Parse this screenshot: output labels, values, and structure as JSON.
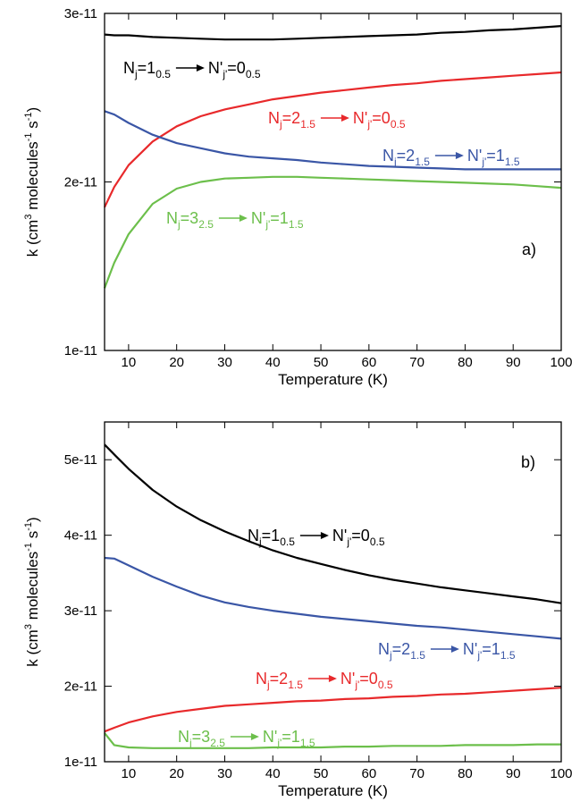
{
  "chart_data": [
    {
      "type": "line",
      "panel_label": "a)",
      "xlabel": "Temperature (K)",
      "ylabel": "k (cm3 molecules-1 s-1)",
      "ylabel_parts": {
        "pre": "k (cm",
        "sup1": "3",
        "mid": " molecules",
        "sup2": "-1",
        "mid2": " s",
        "sup3": "-1",
        "post": ")"
      },
      "xlim": [
        5,
        100
      ],
      "ylim": [
        1e-11,
        3e-11
      ],
      "x_ticks": [
        10,
        20,
        30,
        40,
        50,
        60,
        70,
        80,
        90,
        100
      ],
      "y_ticks": [
        1e-11,
        2e-11,
        3e-11
      ],
      "y_tick_labels": [
        "1e-11",
        "2e-11",
        "3e-11"
      ],
      "grid": false,
      "series": [
        {
          "color": "#000000",
          "label": {
            "n_l": "N",
            "j_l": "j",
            "eq_l": "=1",
            "s_l": "0.5",
            "n_r": "N'",
            "j_r": "j'",
            "eq_r": "=0",
            "s_r": "0.5"
          },
          "x": [
            5,
            7,
            10,
            15,
            20,
            25,
            30,
            35,
            40,
            45,
            50,
            55,
            60,
            65,
            70,
            75,
            80,
            85,
            90,
            95,
            100
          ],
          "y": [
            2.875e-11,
            2.87e-11,
            2.87e-11,
            2.86e-11,
            2.855e-11,
            2.85e-11,
            2.845e-11,
            2.845e-11,
            2.845e-11,
            2.85e-11,
            2.855e-11,
            2.86e-11,
            2.865e-11,
            2.87e-11,
            2.875e-11,
            2.885e-11,
            2.89e-11,
            2.9e-11,
            2.905e-11,
            2.915e-11,
            2.925e-11
          ]
        },
        {
          "color": "#e8292b",
          "label": {
            "n_l": "N",
            "j_l": "j",
            "eq_l": "=2",
            "s_l": "1.5",
            "n_r": "N'",
            "j_r": "j'",
            "eq_r": "=0",
            "s_r": "0.5"
          },
          "x": [
            5,
            7,
            10,
            15,
            20,
            25,
            30,
            35,
            40,
            45,
            50,
            55,
            60,
            65,
            70,
            75,
            80,
            85,
            90,
            95,
            100
          ],
          "y": [
            1.85e-11,
            1.97e-11,
            2.1e-11,
            2.24e-11,
            2.33e-11,
            2.39e-11,
            2.43e-11,
            2.46e-11,
            2.49e-11,
            2.51e-11,
            2.53e-11,
            2.545e-11,
            2.56e-11,
            2.575e-11,
            2.585e-11,
            2.6e-11,
            2.61e-11,
            2.62e-11,
            2.63e-11,
            2.64e-11,
            2.65e-11
          ]
        },
        {
          "color": "#3a56a6",
          "label": {
            "n_l": "N",
            "j_l": "j",
            "eq_l": "=2",
            "s_l": "1.5",
            "n_r": "N'",
            "j_r": "j'",
            "eq_r": "=1",
            "s_r": "1.5"
          },
          "x": [
            5,
            7,
            10,
            15,
            20,
            25,
            30,
            35,
            40,
            45,
            50,
            55,
            60,
            65,
            70,
            75,
            80,
            85,
            90,
            95,
            100
          ],
          "y": [
            2.42e-11,
            2.4e-11,
            2.35e-11,
            2.28e-11,
            2.23e-11,
            2.2e-11,
            2.17e-11,
            2.15e-11,
            2.14e-11,
            2.13e-11,
            2.115e-11,
            2.105e-11,
            2.095e-11,
            2.09e-11,
            2.085e-11,
            2.08e-11,
            2.075e-11,
            2.075e-11,
            2.075e-11,
            2.075e-11,
            2.075e-11
          ]
        },
        {
          "color": "#6cbf4b",
          "label": {
            "n_l": "N",
            "j_l": "j",
            "eq_l": "=3",
            "s_l": "2.5",
            "n_r": "N'",
            "j_r": "j'",
            "eq_r": "=1",
            "s_r": "1.5"
          },
          "x": [
            5,
            7,
            10,
            15,
            20,
            25,
            30,
            35,
            40,
            45,
            50,
            55,
            60,
            65,
            70,
            75,
            80,
            85,
            90,
            95,
            100
          ],
          "y": [
            1.37e-11,
            1.52e-11,
            1.69e-11,
            1.87e-11,
            1.96e-11,
            2e-11,
            2.02e-11,
            2.025e-11,
            2.03e-11,
            2.03e-11,
            2.025e-11,
            2.02e-11,
            2.015e-11,
            2.01e-11,
            2.005e-11,
            2e-11,
            1.995e-11,
            1.99e-11,
            1.985e-11,
            1.975e-11,
            1.965e-11
          ]
        }
      ]
    },
    {
      "type": "line",
      "panel_label": "b)",
      "xlabel": "Temperature (K)",
      "ylabel": "k (cm3 molecules-1 s-1)",
      "ylabel_parts": {
        "pre": "k (cm",
        "sup1": "3",
        "mid": " molecules",
        "sup2": "-1",
        "mid2": " s",
        "sup3": "-1",
        "post": ")"
      },
      "xlim": [
        5,
        100
      ],
      "ylim": [
        1e-11,
        5.5e-11
      ],
      "x_ticks": [
        10,
        20,
        30,
        40,
        50,
        60,
        70,
        80,
        90,
        100
      ],
      "y_ticks": [
        1e-11,
        2e-11,
        3e-11,
        4e-11,
        5e-11
      ],
      "y_tick_labels": [
        "1e-11",
        "2e-11",
        "3e-11",
        "4e-11",
        "5e-11"
      ],
      "grid": false,
      "series": [
        {
          "color": "#000000",
          "label": {
            "n_l": "N",
            "j_l": "j",
            "eq_l": "=1",
            "s_l": "0.5",
            "n_r": "N'",
            "j_r": "j'",
            "eq_r": "=0",
            "s_r": "0.5"
          },
          "x": [
            5,
            7,
            10,
            15,
            20,
            25,
            30,
            35,
            40,
            45,
            50,
            55,
            60,
            65,
            70,
            75,
            80,
            85,
            90,
            95,
            100
          ],
          "y": [
            5.2e-11,
            5.07e-11,
            4.88e-11,
            4.6e-11,
            4.38e-11,
            4.2e-11,
            4.05e-11,
            3.92e-11,
            3.8e-11,
            3.7e-11,
            3.62e-11,
            3.54e-11,
            3.47e-11,
            3.41e-11,
            3.36e-11,
            3.31e-11,
            3.27e-11,
            3.23e-11,
            3.19e-11,
            3.15e-11,
            3.1e-11
          ]
        },
        {
          "color": "#3a56a6",
          "label": {
            "n_l": "N",
            "j_l": "j",
            "eq_l": "=2",
            "s_l": "1.5",
            "n_r": "N'",
            "j_r": "j'",
            "eq_r": "=1",
            "s_r": "1.5"
          },
          "x": [
            5,
            7,
            10,
            15,
            20,
            25,
            30,
            35,
            40,
            45,
            50,
            55,
            60,
            65,
            70,
            75,
            80,
            85,
            90,
            95,
            100
          ],
          "y": [
            3.7e-11,
            3.69e-11,
            3.6e-11,
            3.45e-11,
            3.32e-11,
            3.2e-11,
            3.11e-11,
            3.05e-11,
            3e-11,
            2.96e-11,
            2.92e-11,
            2.89e-11,
            2.86e-11,
            2.83e-11,
            2.8e-11,
            2.78e-11,
            2.75e-11,
            2.72e-11,
            2.69e-11,
            2.66e-11,
            2.63e-11
          ]
        },
        {
          "color": "#e8292b",
          "label": {
            "n_l": "N",
            "j_l": "j",
            "eq_l": "=2",
            "s_l": "1.5",
            "n_r": "N'",
            "j_r": "j'",
            "eq_r": "=0",
            "s_r": "0.5"
          },
          "x": [
            5,
            7,
            10,
            15,
            20,
            25,
            30,
            35,
            40,
            45,
            50,
            55,
            60,
            65,
            70,
            75,
            80,
            85,
            90,
            95,
            100
          ],
          "y": [
            1.4e-11,
            1.45e-11,
            1.52e-11,
            1.6e-11,
            1.66e-11,
            1.7e-11,
            1.74e-11,
            1.76e-11,
            1.78e-11,
            1.8e-11,
            1.81e-11,
            1.83e-11,
            1.84e-11,
            1.86e-11,
            1.87e-11,
            1.89e-11,
            1.9e-11,
            1.92e-11,
            1.94e-11,
            1.96e-11,
            1.98e-11
          ]
        },
        {
          "color": "#6cbf4b",
          "label": {
            "n_l": "N",
            "j_l": "j",
            "eq_l": "=3",
            "s_l": "2.5",
            "n_r": "N'",
            "j_r": "j'",
            "eq_r": "=1",
            "s_r": "1.5"
          },
          "x": [
            5,
            7,
            10,
            15,
            20,
            25,
            30,
            35,
            40,
            45,
            50,
            55,
            60,
            65,
            70,
            75,
            80,
            85,
            90,
            95,
            100
          ],
          "y": [
            1.38e-11,
            1.22e-11,
            1.19e-11,
            1.18e-11,
            1.18e-11,
            1.18e-11,
            1.18e-11,
            1.18e-11,
            1.19e-11,
            1.19e-11,
            1.19e-11,
            1.2e-11,
            1.2e-11,
            1.21e-11,
            1.21e-11,
            1.21e-11,
            1.22e-11,
            1.22e-11,
            1.22e-11,
            1.23e-11,
            1.23e-11
          ]
        }
      ]
    }
  ]
}
